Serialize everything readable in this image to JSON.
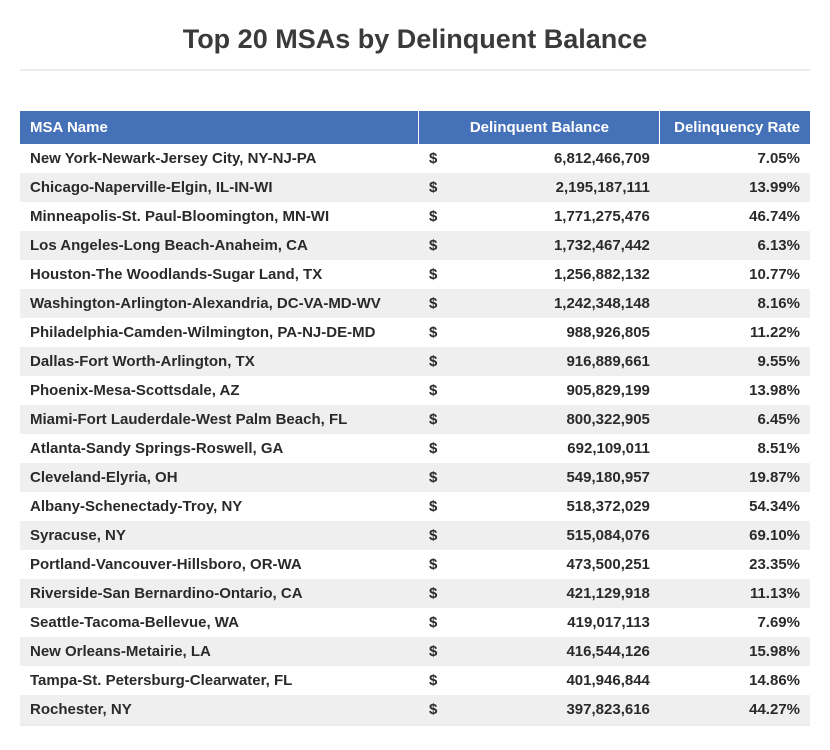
{
  "title": "Top 20 MSAs by Delinquent Balance",
  "table": {
    "type": "table",
    "header_bg": "#4471b8",
    "header_fg": "#ffffff",
    "row_bg_odd": "#ffffff",
    "row_bg_even": "#efefef",
    "text_color": "#2a2a2a",
    "title_color": "#3a3a3a",
    "font_weight": "bold",
    "title_fontsize": 27,
    "body_fontsize": 15,
    "columns": [
      {
        "label": "MSA Name",
        "align": "left",
        "width_pct": 50.5
      },
      {
        "label": "Delinquent Balance",
        "align": "right",
        "width_pct": 30.5
      },
      {
        "label": "Delinquency Rate",
        "align": "right",
        "width_pct": 19.0
      }
    ],
    "currency_symbol": "$",
    "rows": [
      {
        "name": "New York-Newark-Jersey City, NY-NJ-PA",
        "balance": "6,812,466,709",
        "rate": "7.05%"
      },
      {
        "name": "Chicago-Naperville-Elgin, IL-IN-WI",
        "balance": "2,195,187,111",
        "rate": "13.99%"
      },
      {
        "name": "Minneapolis-St. Paul-Bloomington, MN-WI",
        "balance": "1,771,275,476",
        "rate": "46.74%"
      },
      {
        "name": "Los Angeles-Long Beach-Anaheim, CA",
        "balance": "1,732,467,442",
        "rate": "6.13%"
      },
      {
        "name": "Houston-The Woodlands-Sugar Land, TX",
        "balance": "1,256,882,132",
        "rate": "10.77%"
      },
      {
        "name": "Washington-Arlington-Alexandria, DC-VA-MD-WV",
        "balance": "1,242,348,148",
        "rate": "8.16%"
      },
      {
        "name": "Philadelphia-Camden-Wilmington, PA-NJ-DE-MD",
        "balance": "988,926,805",
        "rate": "11.22%"
      },
      {
        "name": "Dallas-Fort Worth-Arlington, TX",
        "balance": "916,889,661",
        "rate": "9.55%"
      },
      {
        "name": "Phoenix-Mesa-Scottsdale, AZ",
        "balance": "905,829,199",
        "rate": "13.98%"
      },
      {
        "name": "Miami-Fort Lauderdale-West Palm Beach, FL",
        "balance": "800,322,905",
        "rate": "6.45%"
      },
      {
        "name": "Atlanta-Sandy Springs-Roswell, GA",
        "balance": "692,109,011",
        "rate": "8.51%"
      },
      {
        "name": "Cleveland-Elyria, OH",
        "balance": "549,180,957",
        "rate": "19.87%"
      },
      {
        "name": "Albany-Schenectady-Troy, NY",
        "balance": "518,372,029",
        "rate": "54.34%"
      },
      {
        "name": "Syracuse, NY",
        "balance": "515,084,076",
        "rate": "69.10%"
      },
      {
        "name": "Portland-Vancouver-Hillsboro, OR-WA",
        "balance": "473,500,251",
        "rate": "23.35%"
      },
      {
        "name": "Riverside-San Bernardino-Ontario, CA",
        "balance": "421,129,918",
        "rate": "11.13%"
      },
      {
        "name": "Seattle-Tacoma-Bellevue, WA",
        "balance": "419,017,113",
        "rate": "7.69%"
      },
      {
        "name": "New Orleans-Metairie, LA",
        "balance": "416,544,126",
        "rate": "15.98%"
      },
      {
        "name": "Tampa-St. Petersburg-Clearwater, FL",
        "balance": "401,946,844",
        "rate": "14.86%"
      },
      {
        "name": "Rochester, NY",
        "balance": "397,823,616",
        "rate": "44.27%"
      }
    ]
  }
}
